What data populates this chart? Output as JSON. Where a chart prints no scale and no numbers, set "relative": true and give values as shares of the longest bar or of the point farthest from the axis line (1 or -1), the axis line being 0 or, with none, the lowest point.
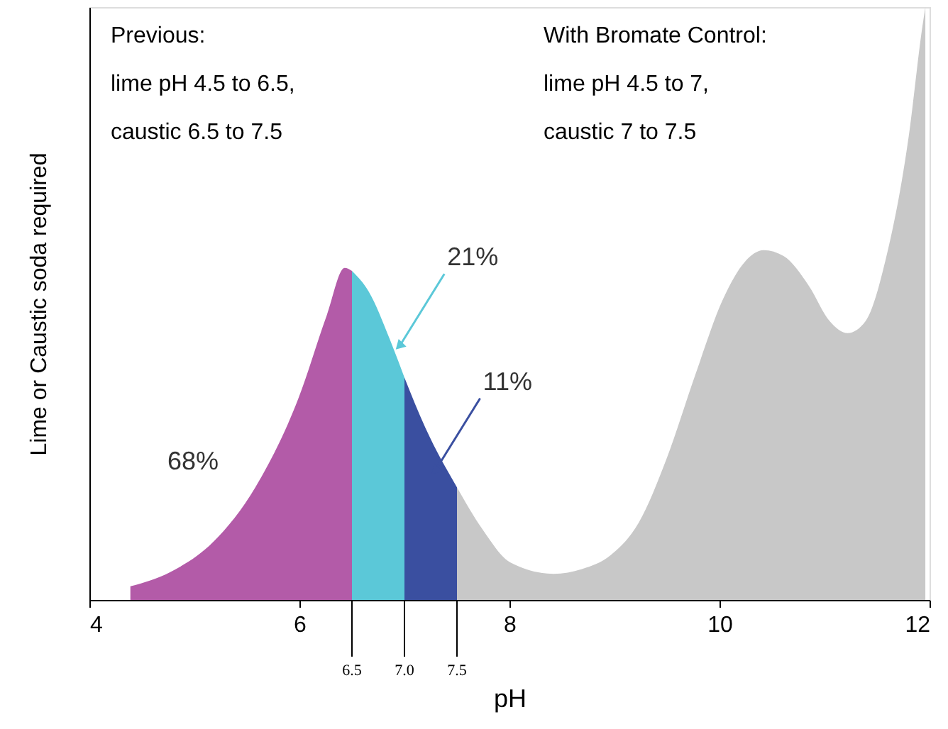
{
  "chart_data": {
    "type": "area",
    "relative": true,
    "xlabel": "pH",
    "ylabel": "Lime or Caustic soda required",
    "xlim": [
      4,
      12
    ],
    "xticks": [
      4,
      6,
      8,
      10,
      12
    ],
    "grid": false,
    "series": [
      {
        "color": "#b35ba8",
        "x": [
          4.39,
          4.77,
          5.18,
          5.58,
          5.99,
          6.26,
          6.43,
          6.5
        ],
        "values": [
          0.023,
          0.047,
          0.098,
          0.19,
          0.34,
          0.48,
          0.56,
          0.555
        ]
      },
      {
        "color": "#5bc8d8",
        "x": [
          6.5,
          6.66,
          6.86,
          7.0
        ],
        "values": [
          0.555,
          0.52,
          0.44,
          0.375
        ]
      },
      {
        "color": "#3a4fa0",
        "x": [
          7.0,
          7.2,
          7.5
        ],
        "values": [
          0.375,
          0.29,
          0.19
        ]
      },
      {
        "color": "#c8c8c8",
        "x": [
          7.5,
          7.74,
          8.01,
          8.42,
          8.69,
          8.96,
          9.23,
          9.5,
          9.77,
          10.04,
          10.24,
          10.42,
          10.61,
          10.85,
          11.05,
          11.22,
          11.39,
          11.59,
          11.8,
          11.93,
          11.96
        ],
        "values": [
          0.19,
          0.12,
          0.063,
          0.044,
          0.052,
          0.075,
          0.13,
          0.24,
          0.38,
          0.51,
          0.57,
          0.59,
          0.58,
          0.53,
          0.47,
          0.45,
          0.47,
          0.58,
          0.78,
          0.965,
          1.0
        ]
      }
    ],
    "ref_lines": [
      {
        "axis": "x",
        "value": 6.5,
        "label": "6.5"
      },
      {
        "axis": "x",
        "value": 7.0,
        "label": "7.0"
      },
      {
        "axis": "x",
        "value": 7.5,
        "label": "7.5"
      }
    ],
    "annotations": [
      "Previous:\nlime pH 4.5 to 6.5,\ncaustic 6.5 to 7.5",
      "With Bromate Control:\nlime pH 4.5 to 7,\ncaustic 7 to 7.5",
      "68%",
      {
        "text": "21%",
        "x": 6.96,
        "y": 0.43
      },
      {
        "text": "11%",
        "x": 7.3,
        "y": 0.22
      }
    ]
  }
}
